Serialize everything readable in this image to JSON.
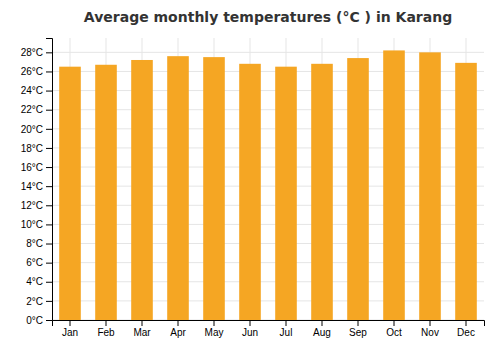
{
  "chart_data": {
    "type": "bar",
    "title": "Average monthly temperatures (°C ) in Karang",
    "categories": [
      "Jan",
      "Feb",
      "Mar",
      "Apr",
      "May",
      "Jun",
      "Jul",
      "Aug",
      "Sep",
      "Oct",
      "Nov",
      "Dec"
    ],
    "values": [
      26.5,
      26.7,
      27.2,
      27.6,
      27.5,
      26.8,
      26.5,
      26.8,
      27.4,
      28.2,
      28.0,
      26.9
    ],
    "color": "#F5A623",
    "ylim": [
      0,
      29.5
    ],
    "yticks": [
      {
        "value": 0,
        "label": "0°C"
      },
      {
        "value": 2,
        "label": "2°C"
      },
      {
        "value": 4,
        "label": "4°C"
      },
      {
        "value": 6,
        "label": "6°C"
      },
      {
        "value": 8,
        "label": "8°C"
      },
      {
        "value": 10,
        "label": "10°C"
      },
      {
        "value": 12,
        "label": "12°C"
      },
      {
        "value": 14,
        "label": "14°C"
      },
      {
        "value": 16,
        "label": "16°C"
      },
      {
        "value": 18,
        "label": "18°C"
      },
      {
        "value": 20,
        "label": "20°C"
      },
      {
        "value": 22,
        "label": "22°C"
      },
      {
        "value": 24,
        "label": "24°C"
      },
      {
        "value": 26,
        "label": "26°C"
      },
      {
        "value": 28,
        "label": "28°C"
      }
    ],
    "grid": true
  }
}
